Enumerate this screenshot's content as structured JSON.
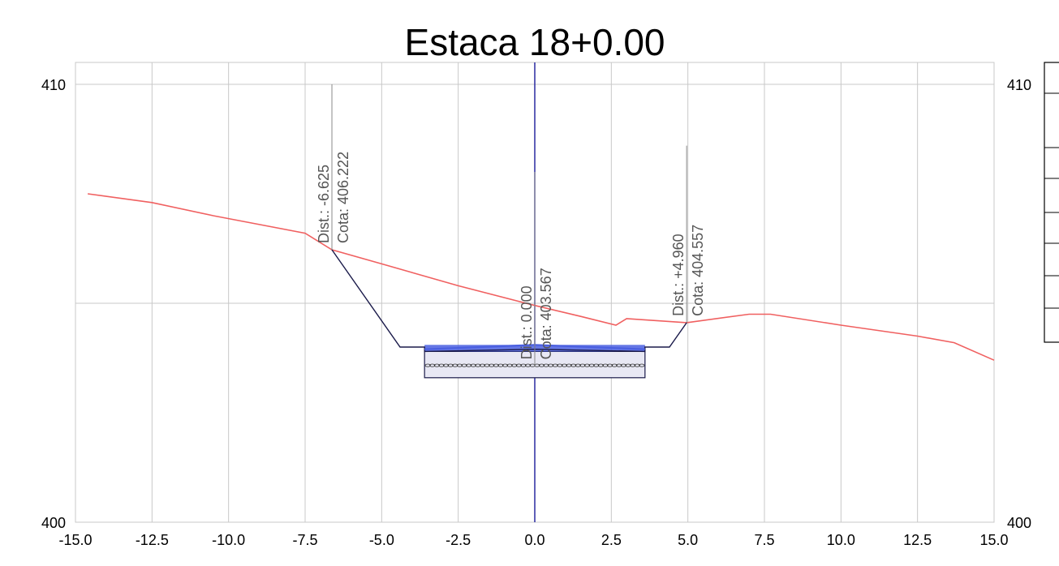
{
  "chart_data": {
    "type": "line",
    "title": "Estaca 18+0.00",
    "xlabel": "",
    "ylabel": "",
    "xlim": [
      -15.0,
      15.0
    ],
    "ylim": [
      400,
      410.5
    ],
    "x_ticks": [
      -15.0,
      -12.5,
      -10.0,
      -7.5,
      -5.0,
      -2.5,
      0.0,
      2.5,
      5.0,
      7.5,
      10.0,
      12.5,
      15.0
    ],
    "x_tick_labels": [
      "-15.0",
      "-12.5",
      "-10.0",
      "-7.5",
      "-5.0",
      "-2.5",
      "0.0",
      "2.5",
      "5.0",
      "7.5",
      "10.0",
      "12.5",
      "15.0"
    ],
    "y_ticks": [
      400,
      405,
      410
    ],
    "y_tick_labels": [
      "400",
      "",
      "410"
    ],
    "grid": true,
    "colors": {
      "terrain": "#f06060",
      "section": "#1a1a4a",
      "axis": "#2a2aa0",
      "pavement": "#4a5fe0",
      "grid": "#c8c8c8"
    },
    "series": [
      {
        "points": [
          [
            -14.6,
            407.5
          ],
          [
            -12.5,
            407.3
          ],
          [
            -10.5,
            407.0
          ],
          [
            -7.5,
            406.6
          ],
          [
            -6.625,
            406.222
          ],
          [
            -5.0,
            405.9
          ],
          [
            -2.5,
            405.4
          ],
          [
            0.0,
            404.95
          ],
          [
            1.5,
            404.7
          ],
          [
            2.65,
            404.5
          ],
          [
            3.0,
            404.65
          ],
          [
            4.96,
            404.557
          ],
          [
            7.0,
            404.75
          ],
          [
            7.7,
            404.75
          ],
          [
            10.0,
            404.5
          ],
          [
            12.5,
            404.25
          ],
          [
            13.7,
            404.1
          ],
          [
            15.0,
            403.7
          ]
        ]
      },
      {
        "points": [
          [
            -6.625,
            406.222
          ],
          [
            -4.4,
            404.0
          ],
          [
            -3.6,
            404.0
          ],
          [
            -3.6,
            403.9
          ],
          [
            -0.0,
            403.95
          ],
          [
            3.6,
            403.9
          ],
          [
            3.6,
            404.0
          ],
          [
            4.4,
            404.0
          ],
          [
            4.96,
            404.557
          ]
        ]
      },
      {
        "points": [
          [
            -3.6,
            403.95
          ],
          [
            0.0,
            404.05
          ],
          [
            3.6,
            403.95
          ]
        ]
      }
    ],
    "annotations": [
      {
        "x": -6.625,
        "y": 406.222,
        "dist": "Dist.: -6.625",
        "cota": "Cota: 406.222",
        "leader_top": 410.0
      },
      {
        "x": 0.0,
        "y": 403.567,
        "dist": "Dist.: 0.000",
        "cota": "Cota: 403.567",
        "leader_top": 408.0
      },
      {
        "x": 4.96,
        "y": 404.557,
        "dist": "Dist.: +4.960",
        "cota": "Cota: 404.557",
        "leader_top": 408.6
      }
    ]
  }
}
